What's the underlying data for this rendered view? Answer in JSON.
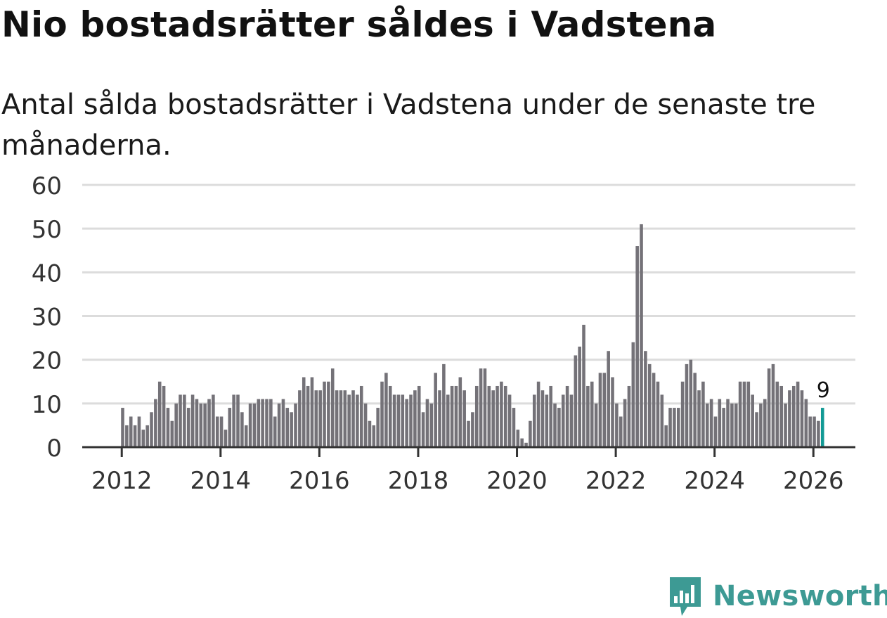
{
  "header": {
    "title": "Nio bostadsrätter såldes i Vadstena",
    "subtitle": "Antal sålda bostadsrätter i Vadstena under de senaste tre månaderna."
  },
  "logo": {
    "text": "Newsworthy",
    "icon": "newsworthy-chart-bubble-icon"
  },
  "colors": {
    "bar": "#747278",
    "highlight": "#129a95",
    "grid": "#dcdcdc",
    "axis": "#333333",
    "brand": "#3d9a94"
  },
  "chart_data": {
    "type": "bar",
    "title": "Nio bostadsrätter såldes i Vadstena",
    "subtitle": "Antal sålda bostadsrätter i Vadstena under de senaste tre månaderna.",
    "xlabel": "",
    "ylabel": "",
    "ylim": [
      0,
      60
    ],
    "yticks": [
      0,
      10,
      20,
      30,
      40,
      50,
      60
    ],
    "xlim": [
      2011.2,
      2026.85
    ],
    "xticks": [
      2012,
      2014,
      2016,
      2018,
      2020,
      2022,
      2024,
      2026
    ],
    "xtick_labels": [
      "2012",
      "2014",
      "2016",
      "2018",
      "2020",
      "2022",
      "2024",
      "2026"
    ],
    "grid": true,
    "x_start": "2012-01",
    "frequency": "monthly",
    "values": [
      9,
      5,
      7,
      5,
      7,
      4,
      5,
      8,
      11,
      15,
      14,
      9,
      6,
      10,
      12,
      12,
      9,
      12,
      11,
      10,
      10,
      11,
      12,
      7,
      7,
      4,
      9,
      12,
      12,
      8,
      5,
      10,
      10,
      11,
      11,
      11,
      11,
      7,
      10,
      11,
      9,
      8,
      10,
      13,
      16,
      14,
      16,
      13,
      13,
      15,
      15,
      18,
      13,
      13,
      13,
      12,
      13,
      12,
      14,
      10,
      6,
      5,
      9,
      15,
      17,
      14,
      12,
      12,
      12,
      11,
      12,
      13,
      14,
      8,
      11,
      10,
      17,
      13,
      19,
      12,
      14,
      14,
      16,
      13,
      6,
      8,
      14,
      18,
      18,
      14,
      13,
      14,
      15,
      14,
      12,
      9,
      4,
      2,
      1,
      6,
      12,
      15,
      13,
      12,
      14,
      10,
      9,
      12,
      14,
      12,
      21,
      23,
      28,
      14,
      15,
      10,
      17,
      17,
      22,
      16,
      10,
      7,
      11,
      14,
      24,
      46,
      51,
      22,
      19,
      17,
      15,
      12,
      5,
      9,
      9,
      9,
      15,
      19,
      20,
      17,
      13,
      15,
      10,
      11,
      7,
      11,
      9,
      11,
      10,
      10,
      15,
      15,
      15,
      12,
      8,
      10,
      11,
      18,
      19,
      15,
      14,
      10,
      13,
      14,
      15,
      13,
      11,
      7,
      7,
      6,
      9
    ],
    "highlight": {
      "index": 170,
      "label": "9"
    }
  }
}
